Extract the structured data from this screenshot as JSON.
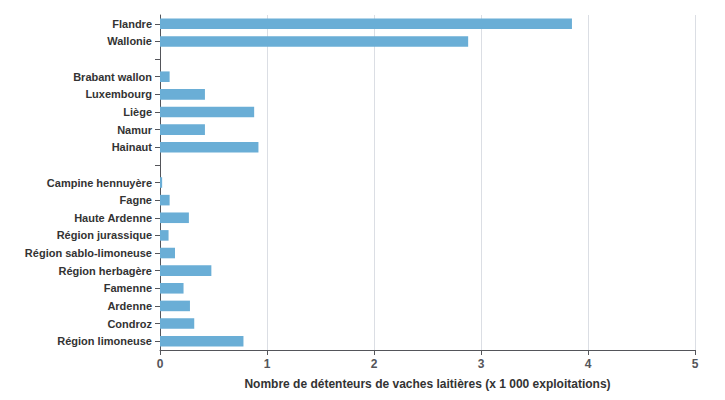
{
  "chart_data": {
    "type": "bar",
    "orientation": "horizontal",
    "categories": [
      "Région limoneuse",
      "Condroz",
      "Ardenne",
      "Famenne",
      "Région herbagère",
      "Région sablo-limoneuse",
      "Région jurassique",
      "Haute Ardenne",
      "Fagne",
      "Campine hennuyère",
      null,
      "Hainaut",
      "Namur",
      "Liège",
      "Luxembourg",
      "Brabant wallon",
      null,
      "Wallonie",
      "Flandre"
    ],
    "values": [
      0.78,
      0.32,
      0.28,
      0.22,
      0.48,
      0.14,
      0.08,
      0.27,
      0.09,
      0.02,
      null,
      0.92,
      0.42,
      0.88,
      0.42,
      0.09,
      null,
      2.88,
      3.85
    ],
    "color": "#6aaed6",
    "xlabel": "Nombre de détenteurs de vaches laitières (x 1 000 exploitations)",
    "xlim": [
      0,
      5
    ],
    "xticks": [
      0,
      1,
      2,
      3,
      4,
      5
    ],
    "grid": true
  }
}
